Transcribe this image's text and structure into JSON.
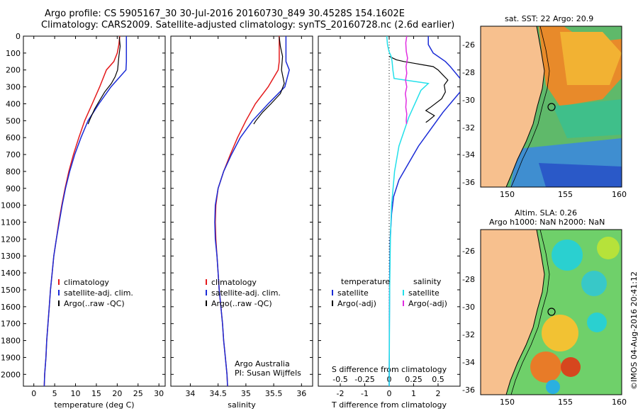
{
  "header": {
    "line1": "Argo profile: CS 5905167_30 30-Jul-2016 20160730_849 30.4528S 154.1602E",
    "line2": "Climatology: CARS2009. Satellite-adjusted climatology: synTS_20160728.nc (2.6d earlier)"
  },
  "colors": {
    "climatology": "#e41a1c",
    "satellite": "#1a2bd6",
    "argo": "#000000",
    "sat_salinity": "#22e0ea",
    "argo_salinity": "#e02de0"
  },
  "chart_data": [
    {
      "type": "line",
      "id": "temperature",
      "xlabel": "temperature (deg C)",
      "ylabel": "",
      "xlim": [
        -2.5,
        31.5
      ],
      "ylim": [
        2070,
        0
      ],
      "x_ticks": [
        0,
        5,
        10,
        15,
        20,
        25,
        30
      ],
      "y_ticks": [
        0,
        100,
        200,
        300,
        400,
        500,
        600,
        700,
        800,
        900,
        1000,
        1100,
        1200,
        1300,
        1400,
        1500,
        1600,
        1700,
        1800,
        1900,
        2000
      ],
      "legend": [
        "climatology",
        "satellite-adj. clim.",
        "Argo(..raw -QC)"
      ],
      "legend_location": "lower-center",
      "series": [
        {
          "name": "climatology",
          "color": "#e41a1c",
          "points": [
            [
              20.6,
              0
            ],
            [
              20.4,
              50
            ],
            [
              20.0,
              100
            ],
            [
              19.2,
              150
            ],
            [
              17.4,
              200
            ],
            [
              15.8,
              300
            ],
            [
              14.0,
              400
            ],
            [
              12.2,
              500
            ],
            [
              10.8,
              600
            ],
            [
              9.5,
              700
            ],
            [
              8.4,
              800
            ],
            [
              7.5,
              900
            ],
            [
              6.7,
              1000
            ],
            [
              6.0,
              1100
            ],
            [
              5.4,
              1200
            ],
            [
              4.8,
              1300
            ],
            [
              4.4,
              1400
            ],
            [
              4.0,
              1500
            ],
            [
              3.7,
              1600
            ],
            [
              3.4,
              1700
            ],
            [
              3.1,
              1800
            ],
            [
              2.9,
              1900
            ],
            [
              2.6,
              2000
            ],
            [
              2.5,
              2070
            ]
          ]
        },
        {
          "name": "satellite-adj. clim.",
          "color": "#1a2bd6",
          "points": [
            [
              22.2,
              0
            ],
            [
              22.2,
              50
            ],
            [
              22.2,
              100
            ],
            [
              22.2,
              150
            ],
            [
              22.1,
              200
            ],
            [
              18.5,
              300
            ],
            [
              15.6,
              400
            ],
            [
              13.0,
              500
            ],
            [
              11.3,
              600
            ],
            [
              9.8,
              700
            ],
            [
              8.6,
              800
            ],
            [
              7.6,
              900
            ],
            [
              6.8,
              1000
            ],
            [
              6.1,
              1100
            ],
            [
              5.4,
              1200
            ],
            [
              4.8,
              1300
            ],
            [
              4.4,
              1400
            ],
            [
              4.0,
              1500
            ],
            [
              3.7,
              1600
            ],
            [
              3.4,
              1700
            ],
            [
              3.1,
              1800
            ],
            [
              2.9,
              1900
            ],
            [
              2.6,
              2000
            ],
            [
              2.5,
              2070
            ]
          ]
        },
        {
          "name": "Argo(..raw -QC)",
          "color": "#000000",
          "points": [
            [
              20.5,
              5
            ],
            [
              20.7,
              60
            ],
            [
              20.4,
              120
            ],
            [
              20.1,
              200
            ],
            [
              19.5,
              240
            ],
            [
              18.6,
              280
            ],
            [
              17.0,
              330
            ],
            [
              15.8,
              380
            ],
            [
              14.6,
              430
            ],
            [
              13.5,
              490
            ],
            [
              13.0,
              520
            ]
          ]
        }
      ]
    },
    {
      "type": "line",
      "id": "salinity",
      "xlabel": "salinity",
      "xlim": [
        33.65,
        36.2
      ],
      "ylim": [
        2070,
        0
      ],
      "x_ticks": [
        34,
        34.5,
        35,
        35.5,
        36
      ],
      "legend": [
        "climatology",
        "satellite-adj. clim.",
        "Argo(..raw -QC)"
      ],
      "legend_location": "lower-center",
      "annotation": [
        "Argo Australia",
        "PI: Susan Wijffels"
      ],
      "series": [
        {
          "name": "climatology",
          "color": "#e41a1c",
          "points": [
            [
              35.6,
              0
            ],
            [
              35.6,
              50
            ],
            [
              35.6,
              100
            ],
            [
              35.6,
              150
            ],
            [
              35.58,
              200
            ],
            [
              35.4,
              300
            ],
            [
              35.17,
              400
            ],
            [
              35.0,
              500
            ],
            [
              34.85,
              600
            ],
            [
              34.72,
              700
            ],
            [
              34.6,
              800
            ],
            [
              34.5,
              900
            ],
            [
              34.46,
              1000
            ],
            [
              34.45,
              1100
            ],
            [
              34.46,
              1200
            ],
            [
              34.48,
              1300
            ],
            [
              34.5,
              1400
            ],
            [
              34.52,
              1500
            ],
            [
              34.55,
              1600
            ],
            [
              34.58,
              1700
            ],
            [
              34.6,
              1800
            ],
            [
              34.63,
              1900
            ],
            [
              34.66,
              2000
            ],
            [
              34.67,
              2070
            ]
          ]
        },
        {
          "name": "satellite-adj. clim.",
          "color": "#1a2bd6",
          "points": [
            [
              35.72,
              0
            ],
            [
              35.72,
              50
            ],
            [
              35.72,
              100
            ],
            [
              35.72,
              150
            ],
            [
              35.78,
              200
            ],
            [
              35.7,
              300
            ],
            [
              35.4,
              400
            ],
            [
              35.12,
              500
            ],
            [
              34.9,
              600
            ],
            [
              34.74,
              700
            ],
            [
              34.6,
              800
            ],
            [
              34.5,
              900
            ],
            [
              34.45,
              1000
            ],
            [
              34.44,
              1100
            ],
            [
              34.45,
              1200
            ],
            [
              34.48,
              1300
            ],
            [
              34.5,
              1400
            ],
            [
              34.52,
              1500
            ],
            [
              34.55,
              1600
            ],
            [
              34.58,
              1700
            ],
            [
              34.6,
              1800
            ],
            [
              34.63,
              1900
            ],
            [
              34.66,
              2000
            ],
            [
              34.67,
              2070
            ]
          ]
        },
        {
          "name": "Argo(..raw -QC)",
          "color": "#000000",
          "points": [
            [
              35.6,
              5
            ],
            [
              35.62,
              60
            ],
            [
              35.66,
              120
            ],
            [
              35.64,
              200
            ],
            [
              35.69,
              280
            ],
            [
              35.62,
              340
            ],
            [
              35.45,
              400
            ],
            [
              35.3,
              450
            ],
            [
              35.18,
              500
            ],
            [
              35.14,
              520
            ]
          ]
        }
      ]
    },
    {
      "type": "line",
      "id": "differences",
      "xlabel": "T difference from climatology",
      "xlabel_top": "S difference from climatology",
      "xlim": [
        -2.9,
        2.9
      ],
      "ylim": [
        2070,
        0
      ],
      "x_ticks": [
        -2,
        -1,
        0,
        1,
        2
      ],
      "s_ticks": [
        -0.5,
        -0.25,
        0,
        0.25,
        0.5
      ],
      "legend_headers": [
        "temperature",
        "salinity"
      ],
      "legend": [
        "satellite",
        "Argo(-adj)",
        "satellite",
        "Argo(-adj)"
      ],
      "legend_location": "lower-center",
      "series": [
        {
          "name": "satellite",
          "color": "#1a2bd6",
          "points": [
            [
              1.6,
              0
            ],
            [
              1.6,
              50
            ],
            [
              1.8,
              100
            ],
            [
              2.3,
              150
            ],
            [
              2.5,
              180
            ],
            [
              2.9,
              250
            ]
          ]
        },
        {
          "name": "satellite",
          "color": "#1a2bd6",
          "points": [
            [
              2.9,
              330
            ],
            [
              2.2,
              450
            ],
            [
              1.7,
              550
            ],
            [
              1.2,
              650
            ],
            [
              0.8,
              750
            ],
            [
              0.4,
              850
            ],
            [
              0.18,
              950
            ],
            [
              0.1,
              1050
            ],
            [
              0.04,
              1200
            ],
            [
              0.02,
              1400
            ],
            [
              0.01,
              1700
            ],
            [
              0,
              2070
            ]
          ]
        },
        {
          "name": "Argo(-adj)",
          "color": "#000000",
          "points": [
            [
              0,
              120
            ],
            [
              0.3,
              140
            ],
            [
              0.6,
              150
            ],
            [
              1.0,
              160
            ],
            [
              1.4,
              170
            ],
            [
              1.8,
              180
            ],
            [
              2.0,
              200
            ],
            [
              2.2,
              230
            ],
            [
              2.4,
              260
            ],
            [
              2.25,
              290
            ],
            [
              2.3,
              330
            ],
            [
              2.15,
              370
            ],
            [
              1.7,
              420
            ],
            [
              1.5,
              440
            ],
            [
              1.85,
              470
            ],
            [
              1.6,
              500
            ],
            [
              1.5,
              510
            ]
          ]
        },
        {
          "name": "satellite",
          "color": "#22e0ea",
          "points": [
            [
              -0.1,
              0
            ],
            [
              -0.07,
              50
            ],
            [
              -0.01,
              90
            ],
            [
              0.08,
              120
            ],
            [
              0.12,
              150
            ],
            [
              0.15,
              200
            ],
            [
              0.2,
              250
            ],
            [
              1.6,
              280
            ],
            [
              1.3,
              320
            ],
            [
              0.8,
              480
            ],
            [
              0.4,
              650
            ],
            [
              0.22,
              800
            ],
            [
              0.1,
              1000
            ],
            [
              0.05,
              1200
            ],
            [
              0.02,
              1500
            ],
            [
              0,
              2070
            ]
          ]
        },
        {
          "name": "Argo(-adj)",
          "color": "#e02de0",
          "points": [
            [
              0.72,
              0
            ],
            [
              0.68,
              40
            ],
            [
              0.7,
              90
            ],
            [
              0.75,
              130
            ],
            [
              0.69,
              180
            ],
            [
              0.72,
              220
            ],
            [
              0.67,
              260
            ],
            [
              0.72,
              300
            ],
            [
              0.66,
              340
            ],
            [
              0.7,
              380
            ],
            [
              0.68,
              420
            ],
            [
              0.72,
              460
            ],
            [
              0.7,
              500
            ],
            [
              0.71,
              520
            ]
          ]
        }
      ]
    }
  ],
  "maps": {
    "sst": {
      "title": "sat. SST: 22 Argo: 20.9",
      "lat_ticks": [
        "-26",
        "-28",
        "-30",
        "-32",
        "-34",
        "-36"
      ],
      "lon_ticks": [
        "150",
        "155",
        "160"
      ]
    },
    "sla": {
      "title1": "Altim. SLA: 0.26",
      "title2": "Argo h1000: NaN h2000: NaN",
      "lat_ticks": [
        "-26",
        "-28",
        "-30",
        "-32",
        "-34",
        "-36"
      ],
      "lon_ticks": [
        "150",
        "155",
        "160"
      ]
    },
    "marker": {
      "lat": -30.45,
      "lon": 154.16
    }
  },
  "footer": {
    "credit": "©IMOS 04-Aug-2016 20:41:12"
  }
}
